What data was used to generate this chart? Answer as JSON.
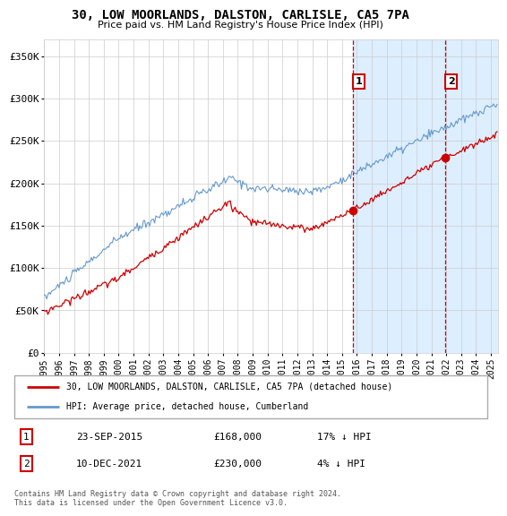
{
  "title": "30, LOW MOORLANDS, DALSTON, CARLISLE, CA5 7PA",
  "subtitle": "Price paid vs. HM Land Registry's House Price Index (HPI)",
  "ylabel_ticks": [
    "£0",
    "£50K",
    "£100K",
    "£150K",
    "£200K",
    "£250K",
    "£300K",
    "£350K"
  ],
  "ytick_values": [
    0,
    50000,
    100000,
    150000,
    200000,
    250000,
    300000,
    350000
  ],
  "ylim": [
    0,
    370000
  ],
  "xlim_start": 1995.0,
  "xlim_end": 2025.5,
  "hpi_color": "#6699cc",
  "price_color": "#cc0000",
  "marker1_date": 2015.73,
  "marker1_price": 168000,
  "marker2_date": 2021.95,
  "marker2_price": 230000,
  "vline_color": "#cc0000",
  "shade_color": "#ddeeff",
  "legend1_label": "30, LOW MOORLANDS, DALSTON, CARLISLE, CA5 7PA (detached house)",
  "legend2_label": "HPI: Average price, detached house, Cumberland",
  "table_row1": [
    "1",
    "23-SEP-2015",
    "£168,000",
    "17% ↓ HPI"
  ],
  "table_row2": [
    "2",
    "10-DEC-2021",
    "£230,000",
    "4% ↓ HPI"
  ],
  "footnote": "Contains HM Land Registry data © Crown copyright and database right 2024.\nThis data is licensed under the Open Government Licence v3.0.",
  "xtick_years": [
    1995,
    1996,
    1997,
    1998,
    1999,
    2000,
    2001,
    2002,
    2003,
    2004,
    2005,
    2006,
    2007,
    2008,
    2009,
    2010,
    2011,
    2012,
    2013,
    2014,
    2015,
    2016,
    2017,
    2018,
    2019,
    2020,
    2021,
    2022,
    2023,
    2024,
    2025
  ]
}
